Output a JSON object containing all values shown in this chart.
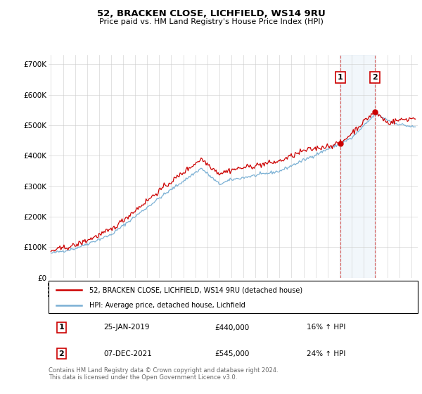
{
  "title1": "52, BRACKEN CLOSE, LICHFIELD, WS14 9RU",
  "title2": "Price paid vs. HM Land Registry's House Price Index (HPI)",
  "ylabel_ticks": [
    "£0",
    "£100K",
    "£200K",
    "£300K",
    "£400K",
    "£500K",
    "£600K",
    "£700K"
  ],
  "ytick_values": [
    0,
    100000,
    200000,
    300000,
    400000,
    500000,
    600000,
    700000
  ],
  "ylim": [
    0,
    730000
  ],
  "xlim_years": [
    1994.8,
    2025.5
  ],
  "event1": {
    "date_x": 2019.07,
    "price": 440000,
    "label": "1",
    "pct": "16% ↑ HPI",
    "date_str": "25-JAN-2019"
  },
  "event2": {
    "date_x": 2021.93,
    "price": 545000,
    "label": "2",
    "pct": "24% ↑ HPI",
    "date_str": "07-DEC-2021"
  },
  "legend_label_red": "52, BRACKEN CLOSE, LICHFIELD, WS14 9RU (detached house)",
  "legend_label_blue": "HPI: Average price, detached house, Lichfield",
  "footer": "Contains HM Land Registry data © Crown copyright and database right 2024.\nThis data is licensed under the Open Government Licence v3.0.",
  "red_color": "#cc0000",
  "blue_color": "#7ab0d4",
  "event_box_color": "#cc0000",
  "shade_color": "#cce0f0",
  "grid_color": "#cccccc",
  "annotation_table": [
    [
      "1",
      "25-JAN-2019",
      "£440,000",
      "16% ↑ HPI"
    ],
    [
      "2",
      "07-DEC-2021",
      "£545,000",
      "24% ↑ HPI"
    ]
  ]
}
